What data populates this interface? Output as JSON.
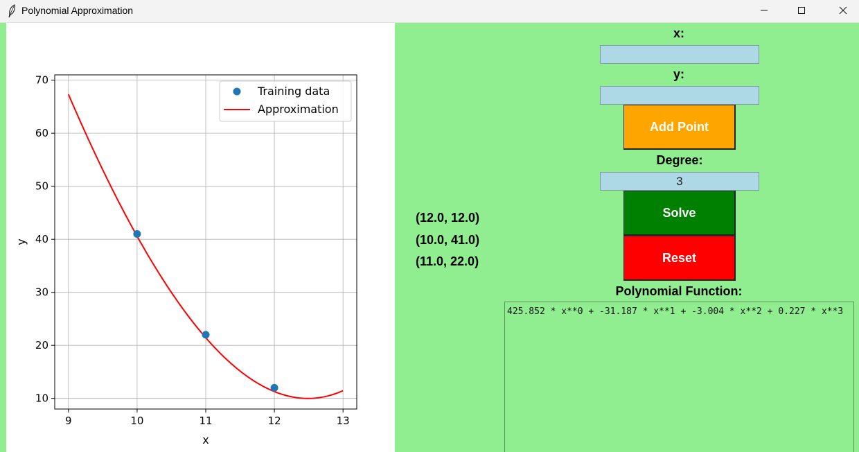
{
  "window": {
    "title": "Polynomial Approximation"
  },
  "form": {
    "x_label": "x:",
    "x_value": "",
    "y_label": "y:",
    "y_value": "",
    "add_label": "Add Point",
    "degree_label": "Degree:",
    "degree_value": "3",
    "solve_label": "Solve",
    "reset_label": "Reset",
    "function_label": "Polynomial Function:",
    "function_text": "425.852 * x**0 + -31.187 * x**1 + -3.004 * x**2 + 0.227 * x**3"
  },
  "points": [
    "(12.0, 12.0)",
    "(10.0, 41.0)",
    "(11.0, 22.0)"
  ],
  "colors": {
    "panel_bg": "#90ee90",
    "input_bg": "#add8e6",
    "add_button": "#ffa500",
    "solve_button": "#008000",
    "reset_button": "#ff0000",
    "training_points": "#1f77b4",
    "approximation_line": "#ff0000"
  },
  "chart_data": {
    "type": "scatter",
    "xlabel": "x",
    "ylabel": "y",
    "xlim": [
      8.8,
      13.2
    ],
    "ylim": [
      8,
      71
    ],
    "xticks": [
      9,
      10,
      11,
      12,
      13
    ],
    "yticks": [
      10,
      20,
      30,
      40,
      50,
      60,
      70
    ],
    "grid": true,
    "legend": "top-right",
    "series": [
      {
        "name": "Training data",
        "kind": "scatter",
        "x": [
          12,
          10,
          11
        ],
        "y": [
          12,
          41,
          22
        ]
      },
      {
        "name": "Approximation",
        "kind": "line",
        "coefficients": [
          425.852,
          -31.187,
          -3.004,
          0.227
        ],
        "x_range": [
          9,
          13
        ]
      }
    ]
  }
}
